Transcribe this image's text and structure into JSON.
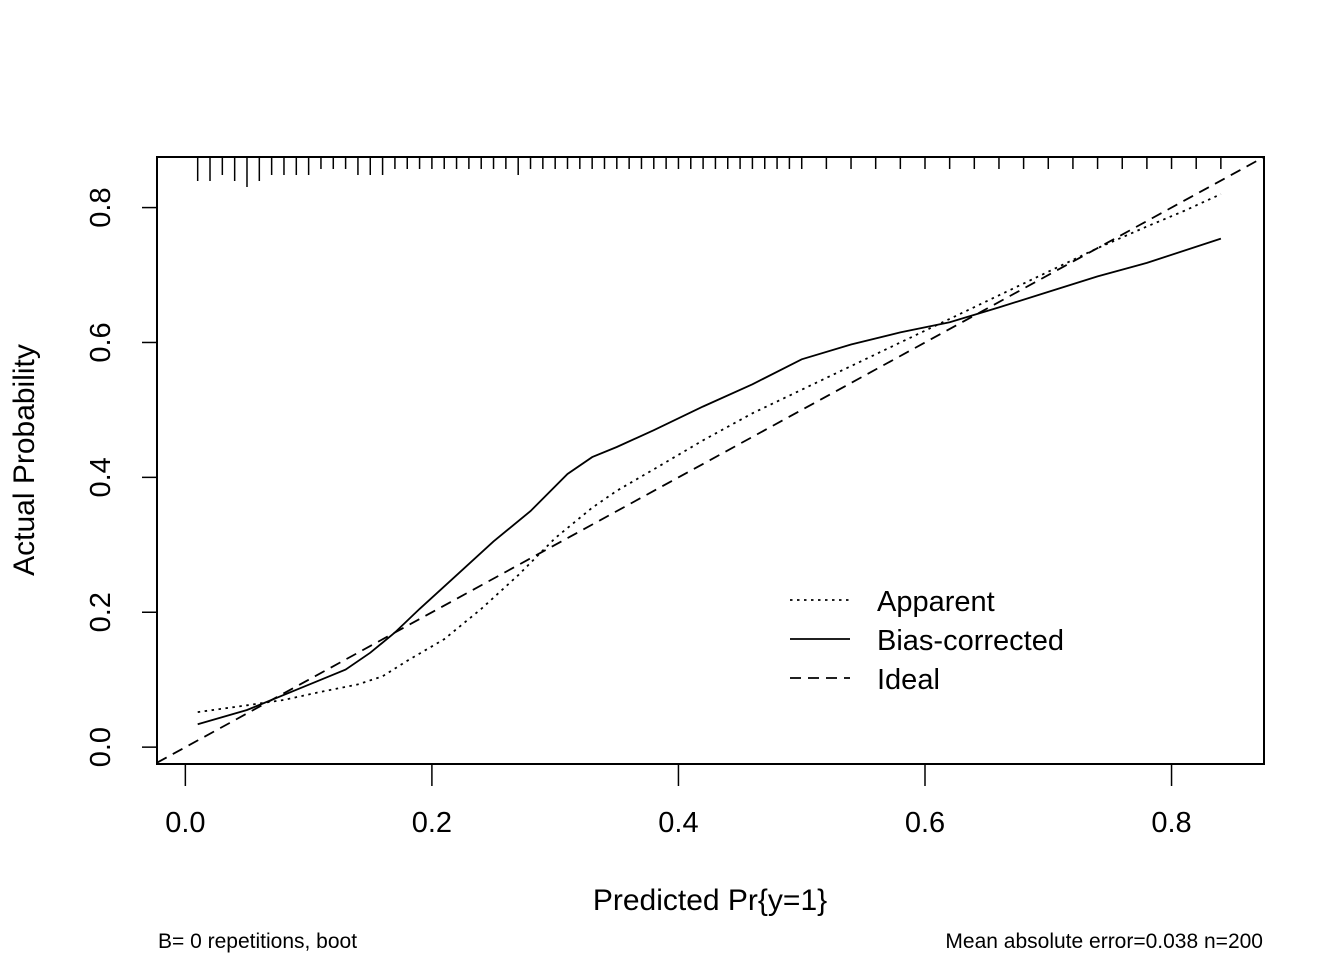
{
  "chart_data": {
    "type": "line",
    "title": "",
    "xlabel": "Predicted Pr{y=1}",
    "ylabel": "Actual Probability",
    "xlim": [
      -0.023,
      0.875
    ],
    "ylim": [
      -0.025,
      0.875
    ],
    "x_ticks": [
      0.0,
      0.2,
      0.4,
      0.6,
      0.8
    ],
    "x_tick_labels": [
      "0.0",
      "0.2",
      "0.4",
      "0.6",
      "0.8"
    ],
    "y_ticks": [
      0.0,
      0.2,
      0.4,
      0.6,
      0.8
    ],
    "y_tick_labels": [
      "0.0",
      "0.2",
      "0.4",
      "0.6",
      "0.8"
    ],
    "grid": false,
    "legend_position": "bottom-right",
    "series": [
      {
        "name": "Apparent",
        "style": "dotted",
        "points": [
          [
            0.01,
            0.052
          ],
          [
            0.05,
            0.062
          ],
          [
            0.08,
            0.07
          ],
          [
            0.11,
            0.082
          ],
          [
            0.14,
            0.093
          ],
          [
            0.16,
            0.105
          ],
          [
            0.18,
            0.128
          ],
          [
            0.21,
            0.16
          ],
          [
            0.24,
            0.205
          ],
          [
            0.27,
            0.255
          ],
          [
            0.3,
            0.31
          ],
          [
            0.33,
            0.355
          ],
          [
            0.35,
            0.38
          ],
          [
            0.38,
            0.412
          ],
          [
            0.42,
            0.455
          ],
          [
            0.46,
            0.495
          ],
          [
            0.5,
            0.53
          ],
          [
            0.54,
            0.565
          ],
          [
            0.58,
            0.6
          ],
          [
            0.62,
            0.635
          ],
          [
            0.66,
            0.67
          ],
          [
            0.7,
            0.705
          ],
          [
            0.74,
            0.74
          ],
          [
            0.78,
            0.772
          ],
          [
            0.81,
            0.795
          ],
          [
            0.84,
            0.82
          ]
        ]
      },
      {
        "name": "Bias-corrected",
        "style": "solid",
        "points": [
          [
            0.01,
            0.034
          ],
          [
            0.05,
            0.055
          ],
          [
            0.09,
            0.085
          ],
          [
            0.11,
            0.1
          ],
          [
            0.13,
            0.115
          ],
          [
            0.15,
            0.14
          ],
          [
            0.17,
            0.17
          ],
          [
            0.19,
            0.205
          ],
          [
            0.22,
            0.255
          ],
          [
            0.25,
            0.305
          ],
          [
            0.28,
            0.35
          ],
          [
            0.31,
            0.405
          ],
          [
            0.33,
            0.43
          ],
          [
            0.35,
            0.445
          ],
          [
            0.38,
            0.47
          ],
          [
            0.42,
            0.505
          ],
          [
            0.46,
            0.538
          ],
          [
            0.5,
            0.575
          ],
          [
            0.54,
            0.597
          ],
          [
            0.58,
            0.615
          ],
          [
            0.62,
            0.63
          ],
          [
            0.66,
            0.652
          ],
          [
            0.7,
            0.675
          ],
          [
            0.74,
            0.698
          ],
          [
            0.78,
            0.718
          ],
          [
            0.84,
            0.754
          ]
        ]
      },
      {
        "name": "Ideal",
        "style": "dashed",
        "points": [
          [
            -0.023,
            -0.023
          ],
          [
            0.875,
            0.875
          ]
        ]
      }
    ],
    "rug_x": [
      0.01,
      0.02,
      0.03,
      0.04,
      0.05,
      0.06,
      0.07,
      0.08,
      0.09,
      0.1,
      0.11,
      0.12,
      0.13,
      0.14,
      0.15,
      0.16,
      0.17,
      0.18,
      0.19,
      0.2,
      0.21,
      0.22,
      0.23,
      0.24,
      0.25,
      0.26,
      0.27,
      0.28,
      0.29,
      0.3,
      0.31,
      0.32,
      0.33,
      0.34,
      0.35,
      0.36,
      0.37,
      0.38,
      0.39,
      0.4,
      0.41,
      0.42,
      0.43,
      0.44,
      0.45,
      0.46,
      0.47,
      0.48,
      0.49,
      0.5,
      0.52,
      0.54,
      0.56,
      0.58,
      0.6,
      0.62,
      0.64,
      0.66,
      0.68,
      0.7,
      0.72,
      0.74,
      0.76,
      0.78,
      0.8,
      0.82,
      0.84
    ],
    "rug_heights": [
      3,
      3,
      2,
      3,
      4,
      3,
      2,
      2,
      2,
      2,
      1,
      1,
      1,
      2,
      2,
      2,
      1,
      1,
      1,
      1,
      1,
      1,
      1,
      1,
      1,
      1,
      2,
      1,
      1,
      1,
      1,
      1,
      1,
      1,
      1,
      1,
      1,
      1,
      1,
      1,
      1,
      1,
      1,
      1,
      1,
      1,
      1,
      1,
      1,
      1,
      1,
      1,
      1,
      1,
      1,
      1,
      1,
      1,
      1,
      1,
      1,
      1,
      1,
      1,
      1,
      1,
      1
    ],
    "annotations": {
      "bottom_left": "B= 0 repetitions, boot",
      "bottom_right": "Mean absolute error=0.038 n=200"
    }
  }
}
